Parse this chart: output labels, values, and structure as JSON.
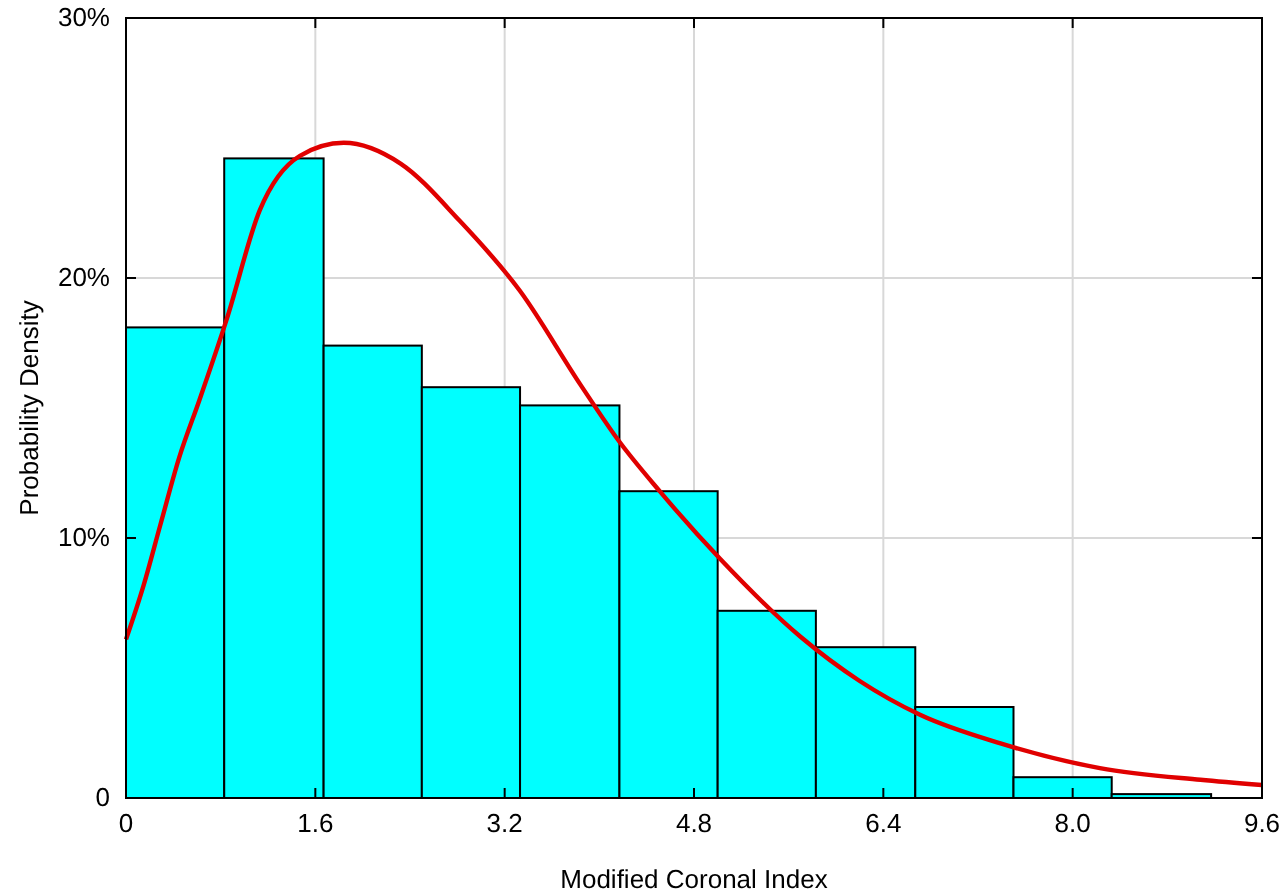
{
  "chart_data": {
    "type": "histogram",
    "xlabel": "Modified Coronal Index",
    "ylabel": "Probability Density",
    "bins": [
      0,
      0.83,
      1.67,
      2.5,
      3.33,
      4.17,
      5,
      5.83,
      6.67,
      7.5,
      8.33,
      9.17
    ],
    "values": [
      18.1,
      24.6,
      17.4,
      15.8,
      15.1,
      11.8,
      7.2,
      5.8,
      3.5,
      0.8,
      0.15
    ],
    "color": "#00ffff",
    "series": [
      {
        "type": "line",
        "color": "#e00000",
        "x": [
          0,
          0.15,
          0.29,
          0.45,
          0.62,
          0.85,
          1.13,
          1.47,
          1.84,
          2.32,
          2.82,
          3.33,
          3.84,
          4.17,
          4.51,
          5.02,
          5.7,
          6.2,
          6.71,
          7.39,
          8.23,
          9.08,
          9.6
        ],
        "values": [
          6.1,
          8.2,
          10.5,
          13.1,
          15.3,
          18.4,
          22.6,
          24.7,
          25.2,
          24.4,
          22.2,
          19.5,
          15.9,
          13.7,
          11.8,
          9.2,
          6.2,
          4.5,
          3.2,
          2.1,
          1.15,
          0.7,
          0.5
        ]
      }
    ],
    "xlim": [
      0,
      9.6
    ],
    "xticks": [
      0,
      1.6,
      3.2,
      4.8,
      6.4,
      {
        "value": 8,
        "label": "8.0"
      },
      9.6
    ],
    "ylim": [
      0,
      30
    ],
    "yticks": [
      0,
      {
        "value": 10,
        "label": "10%"
      },
      {
        "value": 20,
        "label": "20%"
      },
      {
        "value": 30,
        "label": "30%"
      }
    ],
    "grid": true
  }
}
